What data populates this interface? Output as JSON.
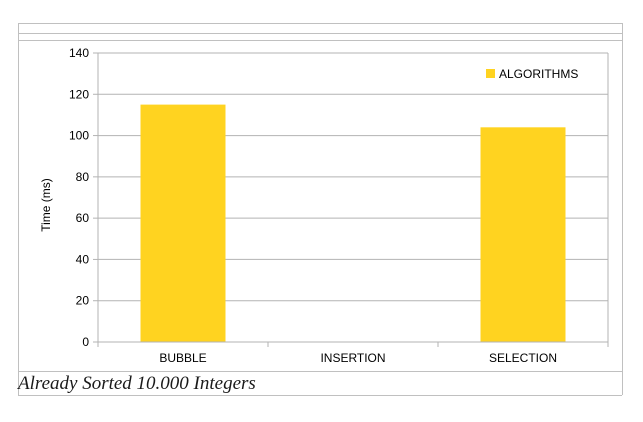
{
  "chart_data": {
    "type": "bar",
    "categories": [
      "BUBBLE",
      "INSERTION",
      "SELECTION"
    ],
    "series": [
      {
        "name": "ALGORITHMS",
        "values": [
          115,
          0,
          104
        ],
        "color": "#ffd320"
      }
    ],
    "ylabel": "Time (ms)",
    "xlabel": "",
    "ylim": [
      0,
      140
    ],
    "yticks": [
      0,
      20,
      40,
      60,
      80,
      100,
      120,
      140
    ],
    "grid": true,
    "legend_position": "top-right"
  },
  "caption": "Already Sorted 10.000 Integers"
}
